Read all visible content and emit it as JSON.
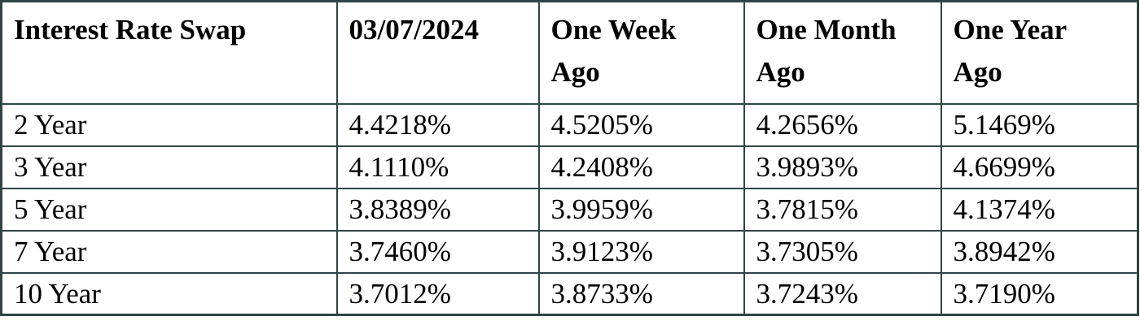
{
  "colors": {
    "border-color": "#2e4545",
    "text-color": "#000000",
    "bg-color": "#ffffff"
  },
  "table": {
    "title": "Interest Rate Swap",
    "columns": [
      "Interest Rate Swap",
      "03/07/2024",
      "One Week Ago",
      "One Month Ago",
      "One Year Ago"
    ],
    "rows": [
      [
        "2 Year",
        "4.4218%",
        "4.5205%",
        "4.2656%",
        "5.1469%"
      ],
      [
        "3 Year",
        "4.1110%",
        "4.2408%",
        "3.9893%",
        "4.6699%"
      ],
      [
        "5 Year",
        "3.8389%",
        "3.9959%",
        "3.7815%",
        "4.1374%"
      ],
      [
        "7 Year",
        "3.7460%",
        "3.9123%",
        "3.7305%",
        "3.8942%"
      ],
      [
        "10 Year",
        "3.7012%",
        "3.8733%",
        "3.7243%",
        "3.7190%"
      ]
    ]
  }
}
